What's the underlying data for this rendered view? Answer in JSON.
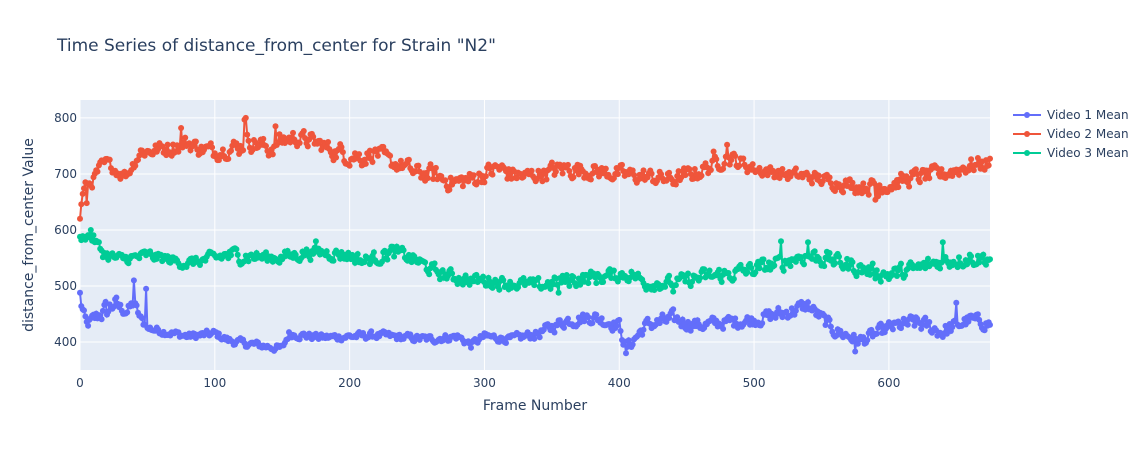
{
  "chart_data": {
    "type": "line",
    "title": "Time Series of distance_from_center for Strain \"N2\"",
    "xlabel": "Frame Number",
    "ylabel": "distance_from_center Value",
    "xlim": [
      0,
      675
    ],
    "ylim": [
      350,
      832
    ],
    "x_ticks": [
      0,
      100,
      200,
      300,
      400,
      500,
      600
    ],
    "y_ticks": [
      400,
      500,
      600,
      700,
      800
    ],
    "x_tick_labels": [
      "0",
      "100",
      "200",
      "300",
      "400",
      "500",
      "600"
    ],
    "y_tick_labels": [
      "400",
      "500",
      "600",
      "700",
      "800"
    ],
    "grid": true,
    "legend_position": "top-right",
    "markers": true,
    "x_step": 1,
    "series": [
      {
        "name": "Video 1 Mean",
        "color": "#636efa",
        "anchors_x": [
          0,
          5,
          10,
          15,
          20,
          25,
          30,
          35,
          40,
          45,
          50,
          60,
          70,
          80,
          90,
          100,
          110,
          120,
          130,
          140,
          150,
          155,
          165,
          180,
          200,
          220,
          240,
          260,
          280,
          290,
          300,
          320,
          340,
          360,
          380,
          400,
          405,
          420,
          440,
          460,
          480,
          500,
          520,
          540,
          560,
          580,
          600,
          620,
          640,
          660,
          675
        ],
        "anchors_y": [
          475,
          430,
          440,
          450,
          455,
          470,
          460,
          455,
          470,
          440,
          425,
          420,
          415,
          410,
          412,
          415,
          403,
          398,
          395,
          392,
          388,
          415,
          412,
          408,
          410,
          412,
          408,
          405,
          410,
          395,
          410,
          405,
          415,
          438,
          445,
          430,
          388,
          430,
          440,
          430,
          435,
          440,
          450,
          465,
          420,
          402,
          425,
          435,
          418,
          440,
          432
        ],
        "noise": [
          8,
          8,
          10,
          12,
          18,
          15,
          10,
          8,
          8,
          8,
          6,
          6,
          6,
          6,
          6,
          6,
          6,
          6,
          6,
          6,
          6,
          6,
          6,
          6,
          6,
          6,
          6,
          6,
          6,
          6,
          6,
          6,
          8,
          10,
          10,
          10,
          10,
          10,
          12,
          10,
          10,
          10,
          12,
          10,
          10,
          10,
          10,
          12,
          12,
          10,
          10
        ],
        "spikes": [
          [
            0,
            488
          ],
          [
            40,
            510
          ],
          [
            49,
            495
          ],
          [
            405,
            380
          ],
          [
            575,
            383
          ],
          [
            650,
            470
          ]
        ]
      },
      {
        "name": "Video 2 Mean",
        "color": "#ef553b",
        "anchors_x": [
          0,
          3,
          6,
          10,
          15,
          20,
          25,
          30,
          35,
          40,
          45,
          50,
          60,
          70,
          80,
          90,
          100,
          110,
          120,
          125,
          130,
          140,
          150,
          160,
          170,
          180,
          190,
          200,
          210,
          220,
          230,
          240,
          250,
          260,
          270,
          280,
          290,
          300,
          310,
          320,
          330,
          340,
          360,
          380,
          400,
          420,
          440,
          460,
          480,
          490,
          500,
          520,
          540,
          560,
          580,
          600,
          620,
          640,
          660,
          675
        ],
        "anchors_y": [
          640,
          670,
          680,
          690,
          710,
          720,
          710,
          700,
          700,
          720,
          740,
          740,
          745,
          750,
          755,
          745,
          740,
          745,
          750,
          760,
          755,
          745,
          760,
          765,
          760,
          750,
          740,
          735,
          730,
          740,
          720,
          715,
          700,
          700,
          690,
          685,
          690,
          700,
          710,
          700,
          695,
          700,
          710,
          705,
          700,
          695,
          690,
          705,
          730,
          720,
          710,
          700,
          695,
          685,
          678,
          680,
          695,
          700,
          715,
          720
        ],
        "noise": [
          15,
          12,
          10,
          10,
          10,
          8,
          8,
          8,
          8,
          10,
          10,
          10,
          12,
          14,
          12,
          12,
          12,
          12,
          14,
          14,
          14,
          14,
          14,
          12,
          12,
          12,
          14,
          16,
          14,
          12,
          12,
          12,
          14,
          14,
          14,
          14,
          14,
          14,
          14,
          14,
          12,
          12,
          14,
          12,
          12,
          12,
          12,
          12,
          12,
          12,
          10,
          10,
          10,
          10,
          12,
          12,
          12,
          12,
          12,
          12
        ],
        "spikes": [
          [
            0,
            620
          ],
          [
            5,
            648
          ],
          [
            75,
            782
          ],
          [
            122,
            797
          ],
          [
            123,
            800
          ],
          [
            145,
            785
          ],
          [
            470,
            740
          ],
          [
            480,
            752
          ],
          [
            590,
            654
          ],
          [
            592,
            660
          ]
        ]
      },
      {
        "name": "Video 3 Mean",
        "color": "#00cc96",
        "anchors_x": [
          0,
          5,
          10,
          15,
          20,
          25,
          30,
          40,
          50,
          60,
          70,
          80,
          90,
          100,
          110,
          120,
          130,
          140,
          150,
          160,
          170,
          180,
          190,
          200,
          210,
          220,
          230,
          240,
          250,
          260,
          270,
          280,
          290,
          300,
          320,
          340,
          360,
          380,
          400,
          410,
          420,
          440,
          460,
          480,
          500,
          520,
          530,
          540,
          560,
          580,
          600,
          620,
          640,
          660,
          675
        ],
        "anchors_y": [
          585,
          590,
          585,
          565,
          555,
          550,
          548,
          550,
          555,
          550,
          545,
          540,
          545,
          550,
          555,
          555,
          553,
          550,
          552,
          555,
          560,
          560,
          558,
          555,
          545,
          550,
          560,
          555,
          545,
          530,
          520,
          515,
          510,
          510,
          505,
          500,
          510,
          515,
          520,
          520,
          505,
          505,
          515,
          520,
          530,
          540,
          550,
          555,
          545,
          530,
          520,
          530,
          545,
          550,
          550
        ],
        "noise": [
          6,
          6,
          8,
          10,
          10,
          8,
          8,
          8,
          8,
          8,
          8,
          8,
          8,
          10,
          12,
          12,
          10,
          10,
          10,
          10,
          10,
          10,
          10,
          10,
          10,
          10,
          12,
          10,
          10,
          10,
          10,
          10,
          10,
          10,
          10,
          10,
          12,
          12,
          10,
          10,
          10,
          10,
          12,
          12,
          12,
          12,
          12,
          14,
          12,
          12,
          12,
          12,
          12,
          12,
          12
        ],
        "spikes": [
          [
            8,
            600
          ],
          [
            175,
            580
          ],
          [
            520,
            580
          ],
          [
            540,
            578
          ],
          [
            640,
            578
          ],
          [
            355,
            488
          ],
          [
            440,
            490
          ]
        ]
      }
    ]
  }
}
